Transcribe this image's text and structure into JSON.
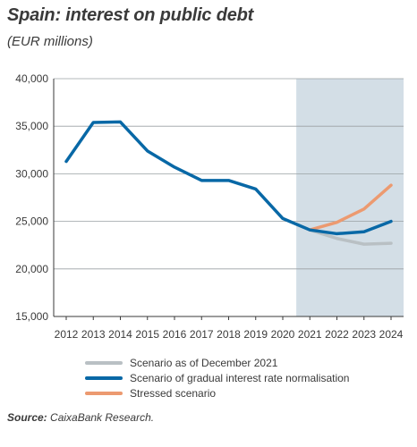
{
  "title": "Spain: interest on public debt",
  "subtitle": "(EUR millions)",
  "source": {
    "label": "Source:",
    "text": " CaixaBank Research."
  },
  "chart_data": {
    "type": "line",
    "title": "Spain: interest on public debt",
    "subtitle": "(EUR millions)",
    "xlabel": "",
    "ylabel": "",
    "x": [
      "2012",
      "2013",
      "2014",
      "2015",
      "2016",
      "2017",
      "2018",
      "2019",
      "2020",
      "2021",
      "2022",
      "2023",
      "2024"
    ],
    "ylim": [
      15000,
      40000
    ],
    "yticks": [
      15000,
      20000,
      25000,
      30000,
      35000,
      40000
    ],
    "ytick_labels": [
      "15,000",
      "20,000",
      "25,000",
      "30,000",
      "35,000",
      "40,000"
    ],
    "grid": "horizontal",
    "shaded_region": {
      "from": "2021",
      "to": "2024",
      "color": "#d3dee6"
    },
    "series": [
      {
        "name": "Scenario as of December 2021",
        "color": "#b9c0c4",
        "x": [
          "2021",
          "2022",
          "2023",
          "2024"
        ],
        "values": [
          24100,
          23200,
          22600,
          22700
        ]
      },
      {
        "name": "Scenario of gradual interest rate normalisation",
        "color": "#0868a6",
        "x": [
          "2012",
          "2013",
          "2014",
          "2015",
          "2016",
          "2017",
          "2018",
          "2019",
          "2020",
          "2021",
          "2022",
          "2023",
          "2024"
        ],
        "values": [
          31300,
          35400,
          35450,
          32400,
          30700,
          29300,
          29300,
          28400,
          25300,
          24100,
          23700,
          23900,
          25000
        ]
      },
      {
        "name": "Stressed scenario",
        "color": "#ec9a70",
        "x": [
          "2021",
          "2022",
          "2023",
          "2024"
        ],
        "values": [
          24100,
          24900,
          26300,
          28800
        ]
      }
    ],
    "legend": {
      "position": "bottom"
    }
  }
}
